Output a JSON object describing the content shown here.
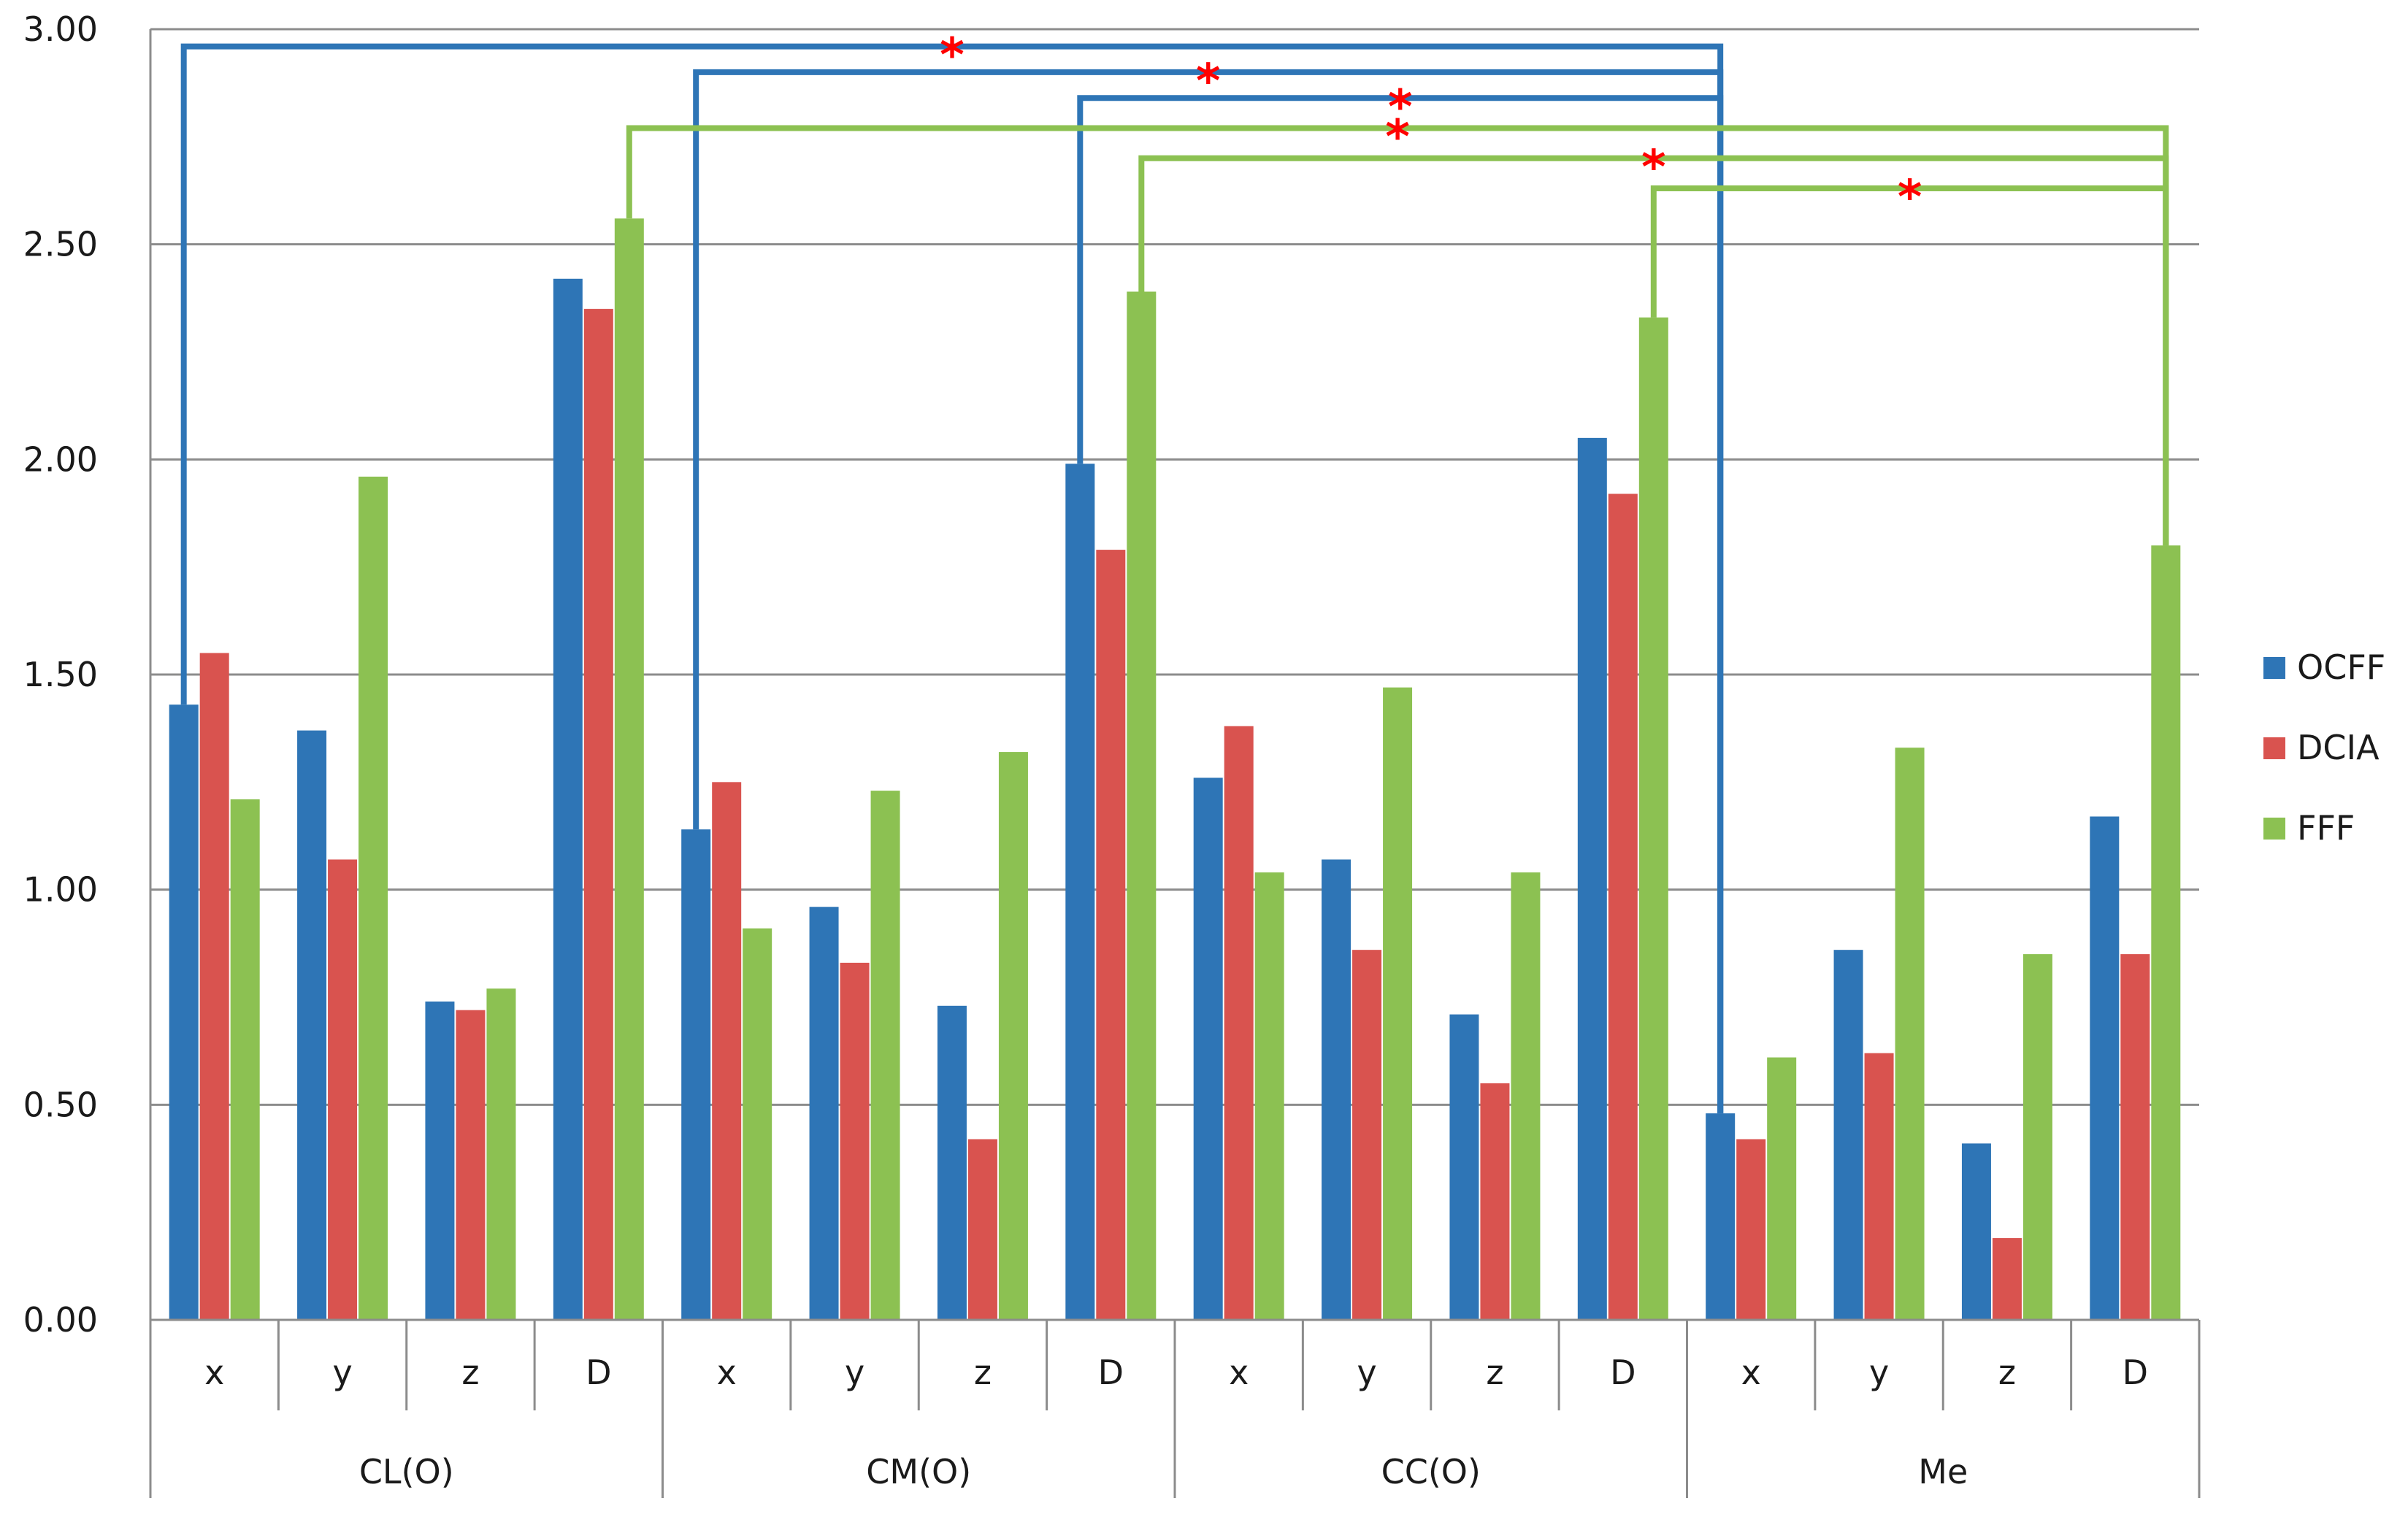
{
  "chart_data": {
    "type": "bar",
    "title": "",
    "xlabel": "",
    "ylabel": "",
    "ylim": [
      0,
      3
    ],
    "yticks": [
      "0.00",
      "0.50",
      "1.00",
      "1.50",
      "2.00",
      "2.50",
      "3.00"
    ],
    "grid": true,
    "legend_position": "right",
    "groups": [
      {
        "name": "CL(O)",
        "subcategories": [
          "x",
          "y",
          "z",
          "D"
        ]
      },
      {
        "name": "CM(O)",
        "subcategories": [
          "x",
          "y",
          "z",
          "D"
        ]
      },
      {
        "name": "CC(O)",
        "subcategories": [
          "x",
          "y",
          "z",
          "D"
        ]
      },
      {
        "name": "Me",
        "subcategories": [
          "x",
          "y",
          "z",
          "D"
        ]
      }
    ],
    "series": [
      {
        "name": "OCFF",
        "color": "#2e75b6",
        "values": [
          1.43,
          1.37,
          0.74,
          2.42,
          1.14,
          0.96,
          0.73,
          1.99,
          1.26,
          1.07,
          0.71,
          2.05,
          0.48,
          0.86,
          0.41,
          1.17
        ]
      },
      {
        "name": "DCIA",
        "color": "#d9534f",
        "values": [
          1.55,
          1.07,
          0.72,
          2.35,
          1.25,
          0.83,
          0.42,
          1.79,
          1.38,
          0.86,
          0.55,
          1.92,
          0.42,
          0.62,
          0.19,
          0.85
        ]
      },
      {
        "name": "FFF",
        "color": "#8cc152",
        "values": [
          1.21,
          1.96,
          0.77,
          2.56,
          0.91,
          1.23,
          1.32,
          2.39,
          1.04,
          1.47,
          1.04,
          2.33,
          0.61,
          1.33,
          0.85,
          1.8
        ]
      }
    ],
    "significance_brackets": [
      {
        "series": "OCFF",
        "from_group": "CL(O)",
        "from_sub": "x",
        "to_group": "Me",
        "to_sub": "x",
        "level": 2.96,
        "label": "*"
      },
      {
        "series": "OCFF",
        "from_group": "CM(O)",
        "from_sub": "x",
        "to_group": "Me",
        "to_sub": "x",
        "level": 2.9,
        "label": "*"
      },
      {
        "series": "OCFF",
        "from_group": "CM(O)",
        "from_sub": "D",
        "to_group": "Me",
        "to_sub": "x",
        "level": 2.84,
        "label": "*"
      },
      {
        "series": "FFF",
        "from_group": "CL(O)",
        "from_sub": "D",
        "to_group": "Me",
        "to_sub": "D",
        "level": 2.77,
        "label": "*"
      },
      {
        "series": "FFF",
        "from_group": "CM(O)",
        "from_sub": "D",
        "to_group": "Me",
        "to_sub": "D",
        "level": 2.7,
        "label": "*"
      },
      {
        "series": "FFF",
        "from_group": "CC(O)",
        "from_sub": "D",
        "to_group": "Me",
        "to_sub": "D",
        "level": 2.63,
        "label": "*"
      }
    ]
  }
}
